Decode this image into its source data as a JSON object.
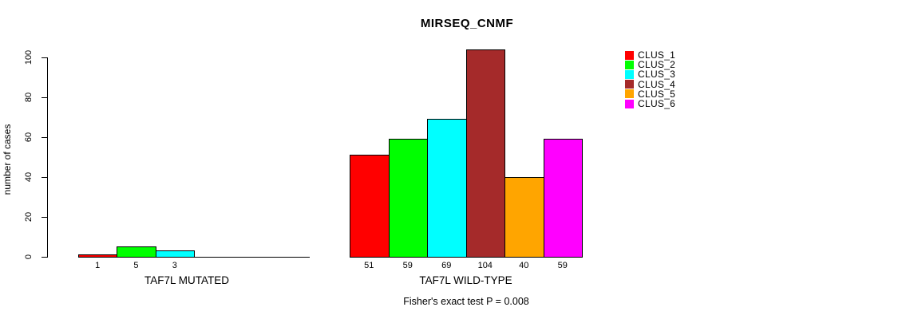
{
  "chart_data": {
    "type": "bar",
    "title": "MIRSEQ_CNMF",
    "ylabel": "number of cases",
    "yticks": [
      0,
      20,
      40,
      60,
      80,
      100
    ],
    "ylim": [
      0,
      104
    ],
    "grid": false,
    "legend_position": "right",
    "clusters": [
      {
        "name": "CLUS_1",
        "color": "#ff0000"
      },
      {
        "name": "CLUS_2",
        "color": "#00ff00"
      },
      {
        "name": "CLUS_3",
        "color": "#00ffff"
      },
      {
        "name": "CLUS_4",
        "color": "#a52a2a"
      },
      {
        "name": "CLUS_5",
        "color": "#ffa500"
      },
      {
        "name": "CLUS_6",
        "color": "#ff00ff"
      }
    ],
    "groups": [
      {
        "xlabel": "TAF7L MUTATED",
        "values": [
          1,
          5,
          3,
          0,
          0,
          0
        ],
        "bar_labels": [
          "1",
          "5",
          "3",
          "",
          "",
          ""
        ]
      },
      {
        "xlabel": "TAF7L WILD-TYPE",
        "values": [
          51,
          59,
          69,
          104,
          40,
          59
        ],
        "bar_labels": [
          "51",
          "59",
          "69",
          "104",
          "40",
          "59"
        ]
      }
    ],
    "footnote": "Fisher's exact test P = 0.008",
    "colors": {
      "text": "#000000",
      "background": "#ffffff"
    }
  }
}
